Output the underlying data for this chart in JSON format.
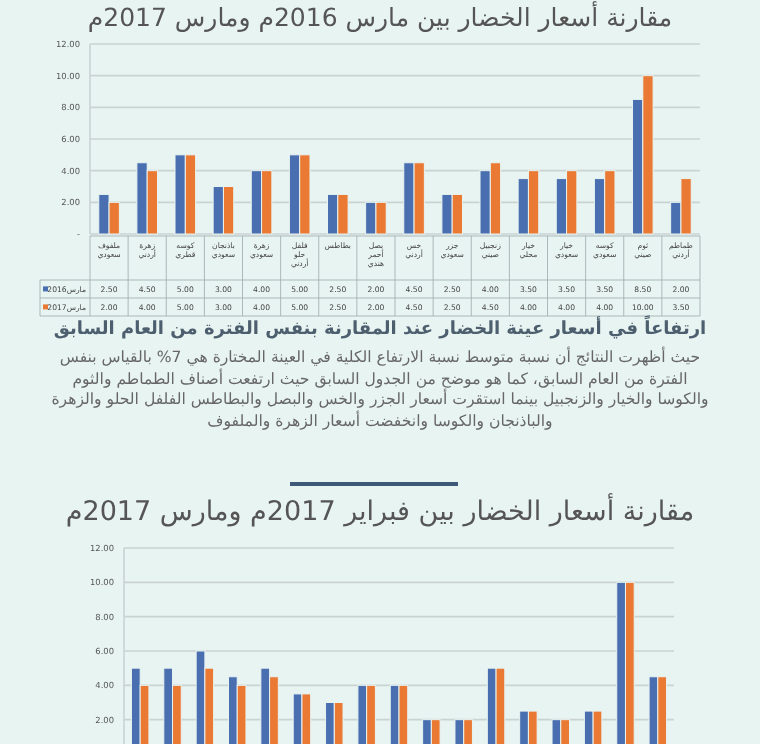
{
  "chart_data": [
    {
      "type": "bar",
      "title": "مقارنة أسعار الخضار بين مارس 2016م ومارس 2017م",
      "categories": [
        "ملفوف سعودي",
        "زهرة أردني",
        "كوسه قطري",
        "باذنجان سعودي",
        "زهرة سعودي",
        "فلفل حلو أردني",
        "بطاطس",
        "بصل أحمر هندي",
        "خس أردني",
        "جزر سعودي",
        "زنجبيل صيني",
        "خيار محلي",
        "خيار سعودي",
        "كوسه سعودي",
        "ثوم صيني",
        "طماطم أردني"
      ],
      "series": [
        {
          "name": "مارس2016",
          "color": "#4a6fb0",
          "values": [
            2.5,
            4.5,
            5,
            3,
            4,
            5,
            2.5,
            2,
            4.5,
            2.5,
            4,
            3.5,
            3.5,
            3.5,
            8.5,
            2
          ],
          "value_labels": [
            "2.50",
            "4.50",
            "5.00",
            "3.00",
            "4.00",
            "5.00",
            "2.50",
            "2.00",
            "4.50",
            "2.50",
            "4.00",
            "3.50",
            "3.50",
            "3.50",
            "8.50",
            "2.00"
          ]
        },
        {
          "name": "مارس2017",
          "color": "#ea7a33",
          "values": [
            2,
            4,
            5,
            3,
            4,
            5,
            2.5,
            2,
            4.5,
            2.5,
            4.5,
            4,
            4,
            4,
            10,
            3.5
          ],
          "value_labels": [
            "2.00",
            "4.00",
            "5.00",
            "3.00",
            "4.00",
            "5.00",
            "2.50",
            "2.00",
            "4.50",
            "2.50",
            "4.50",
            "4.00",
            "4.00",
            "4.00",
            "10.00",
            "3.50"
          ]
        }
      ],
      "ylim": [
        0,
        12
      ],
      "yticks": [
        {
          "value": 0,
          "label": "-"
        },
        {
          "value": 2,
          "label": "2.00"
        },
        {
          "value": 4,
          "label": "4.00"
        },
        {
          "value": 6,
          "label": "6.00"
        },
        {
          "value": 8,
          "label": "8.00"
        },
        {
          "value": 10,
          "label": "10.00"
        },
        {
          "value": 12,
          "label": "12.00"
        }
      ],
      "grid": "y",
      "legend": "bottom left",
      "annotations": [
        "ارتفاعاً في أسعار عينة الخضار عند المقارنة بنفس الفترة من العام السابق",
        "حيث أظهرت النتائج أن نسبة متوسط نسبة الارتفاع الكلية في العينة المختارة هي 7% بالقياس بنفس الفترة من العام السابق، كما هو موضح من الجدول السابق حيث ارتفعت أصناف الطماطم والثوم والكوسا والخيار والزنجبيل بينما استقرت أسعار الجزر والخس والبصل والبطاطس الفلفل الحلو والزهرة والباذنجان والكوسا وانخفضت أسعار الزهرة والملفوف"
      ]
    },
    {
      "type": "bar",
      "title": "مقارنة أسعار الخضار بين فبراير 2017م ومارس 2017م",
      "categories": [
        null,
        null,
        null,
        null,
        null,
        null,
        null,
        null,
        null,
        null,
        null,
        null,
        null,
        null,
        null,
        null,
        null
      ],
      "series": [
        {
          "color": "#4a6fb0",
          "values": [
            5,
            5,
            6,
            4.5,
            5,
            3.5,
            3,
            4,
            4,
            2,
            2,
            5,
            2.5,
            2,
            2.5,
            10,
            4.5
          ]
        },
        {
          "color": "#ea7a33",
          "values": [
            4,
            4,
            5,
            4,
            4.5,
            3.5,
            3,
            4,
            4,
            2,
            2,
            5,
            2.5,
            2,
            2.5,
            10,
            4.5
          ]
        }
      ],
      "ylim": [
        0,
        12
      ],
      "yticks": [
        {
          "value": 2,
          "label": "2.00"
        },
        {
          "value": 4,
          "label": "4.00"
        },
        {
          "value": 6,
          "label": "6.00"
        },
        {
          "value": 8,
          "label": "8.00"
        },
        {
          "value": 10,
          "label": "10.00"
        },
        {
          "value": 12,
          "label": "12.00"
        }
      ],
      "grid": "y"
    }
  ]
}
